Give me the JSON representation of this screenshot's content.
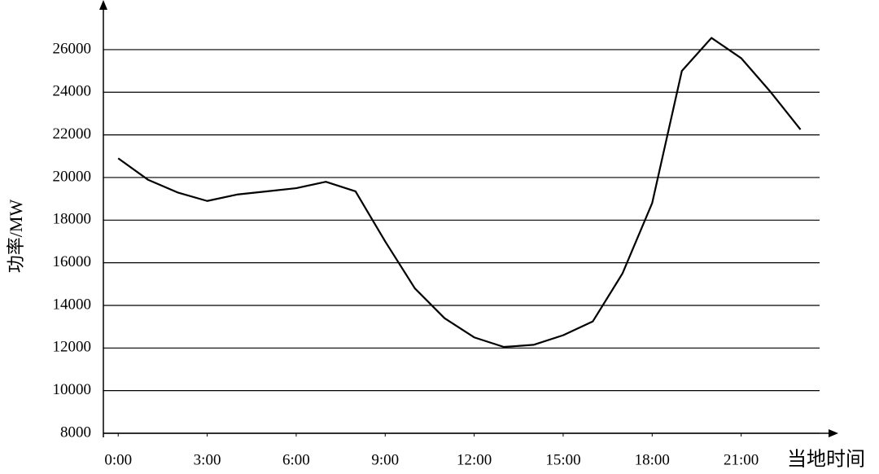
{
  "chart_data": {
    "type": "line",
    "x_label": "当地时间",
    "y_label": "功率/MW",
    "x": [
      0,
      1,
      2,
      3,
      4,
      5,
      6,
      7,
      8,
      9,
      10,
      11,
      12,
      13,
      14,
      15,
      16,
      17,
      18,
      19,
      20,
      21,
      22,
      23
    ],
    "series": [
      {
        "color": "#000000",
        "values": [
          20900,
          19900,
          19300,
          18900,
          19200,
          19350,
          19500,
          19800,
          19350,
          17000,
          14800,
          13400,
          12500,
          12050,
          12150,
          12600,
          13250,
          15500,
          18800,
          25000,
          26550,
          25600,
          24000,
          22250
        ]
      }
    ],
    "xlim": [
      -0.5,
      24
    ],
    "xticks": [
      {
        "value": 0,
        "label": "0:00"
      },
      {
        "value": 3,
        "label": "3:00"
      },
      {
        "value": 6,
        "label": "6:00"
      },
      {
        "value": 9,
        "label": "9:00"
      },
      {
        "value": 12,
        "label": "12:00"
      },
      {
        "value": 15,
        "label": "15:00"
      },
      {
        "value": 18,
        "label": "18:00"
      },
      {
        "value": 21,
        "label": "21:00"
      }
    ],
    "ylim": [
      8000,
      28000
    ],
    "yticks": [
      8000,
      10000,
      12000,
      14000,
      16000,
      18000,
      20000,
      22000,
      24000,
      26000
    ],
    "grid": true
  }
}
